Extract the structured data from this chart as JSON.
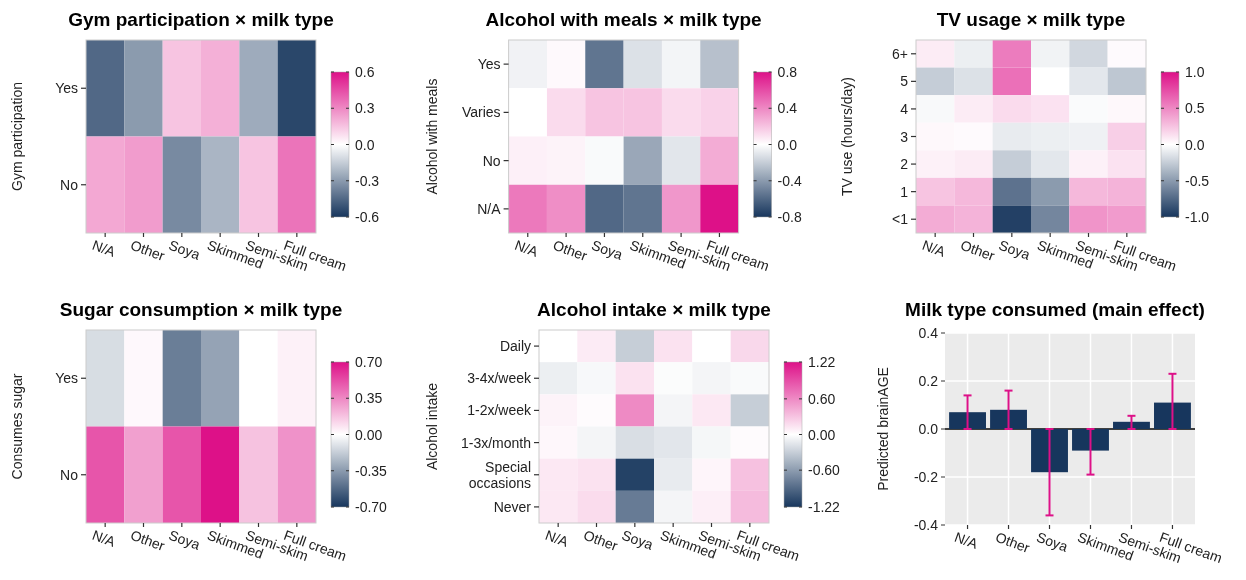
{
  "chart_data": [
    {
      "type": "heatmap",
      "title": "Gym participation × milk type",
      "ylabel": "Gym participation",
      "categories": [
        "N/A",
        "Other",
        "Soya",
        "Skimmed",
        "Semi-skim",
        "Full cream"
      ],
      "y_categories": [
        "Yes",
        "No"
      ],
      "cells": [
        [
          -0.45,
          -0.3,
          0.15,
          0.2,
          -0.25,
          -0.55
        ],
        [
          0.22,
          0.25,
          -0.35,
          -0.22,
          0.15,
          0.35
        ]
      ],
      "clim": [
        -0.6,
        0.6
      ],
      "cticks": [
        -0.6,
        -0.3,
        {
          "value": 0,
          "label": "0.0"
        },
        0.3,
        0.6
      ]
    },
    {
      "type": "heatmap",
      "title": "Alcohol with meals × milk type",
      "ylabel": "Alcohol with meals",
      "categories": [
        "N/A",
        "Other",
        "Soya",
        "Skimmed",
        "Semi-skim",
        "Full cream"
      ],
      "y_categories": [
        "Yes",
        "Varies",
        "No",
        "N/A"
      ],
      "cells": [
        [
          -0.05,
          0.02,
          -0.55,
          -0.12,
          -0.04,
          -0.25
        ],
        [
          0,
          0.12,
          0.2,
          0.2,
          0.12,
          0.15
        ],
        [
          0.05,
          0.04,
          -0.02,
          -0.35,
          -0.1,
          0.28
        ],
        [
          0.45,
          0.38,
          -0.6,
          -0.55,
          0.35,
          0.8
        ]
      ],
      "clim": [
        -0.8,
        0.8
      ],
      "cticks": [
        -0.8,
        -0.4,
        {
          "value": 0,
          "label": "0.0"
        },
        0.4,
        0.8
      ]
    },
    {
      "type": "heatmap",
      "title": "TV usage × milk type",
      "ylabel": "TV use (hours/day)",
      "categories": [
        "N/A",
        "Other",
        "Soya",
        "Skimmed",
        "Semi-skim",
        "Full cream"
      ],
      "y_categories": [
        "6+",
        "5",
        "4",
        "3",
        "2",
        "1",
        "<1"
      ],
      "cells": [
        [
          0.08,
          -0.08,
          0.55,
          -0.06,
          -0.2,
          0.02
        ],
        [
          -0.25,
          -0.15,
          0.6,
          0,
          -0.12,
          -0.28
        ],
        [
          -0.03,
          0.08,
          0.15,
          0.12,
          -0.02,
          0.03
        ],
        [
          0.03,
          0.02,
          -0.1,
          -0.08,
          -0.07,
          0.2
        ],
        [
          0.06,
          0.08,
          -0.25,
          -0.12,
          0.06,
          0.12
        ],
        [
          0.25,
          0.3,
          -0.7,
          -0.5,
          0.3,
          0.32
        ],
        [
          0.35,
          0.32,
          -0.95,
          -0.6,
          0.45,
          0.42
        ]
      ],
      "clim": [
        -1,
        1
      ],
      "cticks": [
        {
          "value": -1,
          "label": "-1.0"
        },
        -0.5,
        {
          "value": 0,
          "label": "0.0"
        },
        0.5,
        {
          "value": 1,
          "label": "1.0"
        }
      ]
    },
    {
      "type": "heatmap",
      "title": "Sugar consumption × milk type",
      "ylabel": "Consumes sugar",
      "categories": [
        "N/A",
        "Other",
        "Soya",
        "Skimmed",
        "Semi-skim",
        "Full cream"
      ],
      "y_categories": [
        "Yes",
        "No"
      ],
      "cells": [
        [
          -0.12,
          0.02,
          -0.45,
          -0.32,
          0,
          0.04
        ],
        [
          0.5,
          0.28,
          0.5,
          0.7,
          0.18,
          0.32
        ]
      ],
      "clim": [
        -0.7,
        0.7
      ],
      "cticks": [
        {
          "value": -0.7,
          "label": "-0.70"
        },
        -0.35,
        {
          "value": 0,
          "label": "0.00"
        },
        0.35,
        {
          "value": 0.7,
          "label": "0.70"
        }
      ]
    },
    {
      "type": "heatmap",
      "title": "Alcohol intake × milk type",
      "ylabel": "Alcohol intake",
      "categories": [
        "N/A",
        "Other",
        "Soya",
        "Skimmed",
        "Semi-skim",
        "Full cream"
      ],
      "y_categories": [
        "Daily",
        "3-4x/week",
        "1-2x/week",
        "1-3x/month",
        "Special occasions",
        "Never"
      ],
      "cells": [
        [
          0,
          0.1,
          -0.3,
          0.15,
          0,
          0.2
        ],
        [
          -0.1,
          -0.04,
          0.15,
          -0.02,
          -0.06,
          -0.03
        ],
        [
          0.06,
          0.02,
          0.6,
          -0.06,
          0.12,
          -0.3
        ],
        [
          0.04,
          -0.06,
          -0.2,
          -0.15,
          -0.05,
          0.02
        ],
        [
          0.12,
          0.15,
          -1.15,
          -0.12,
          0.05,
          0.32
        ],
        [
          0.12,
          0.18,
          -0.8,
          -0.06,
          0.08,
          0.35
        ]
      ],
      "clim": [
        -1.22,
        1.22
      ],
      "cticks": [
        -1.22,
        {
          "value": -0.6,
          "label": "-0.60"
        },
        {
          "value": 0,
          "label": "0.00"
        },
        {
          "value": 0.6,
          "label": "0.60"
        },
        1.22
      ]
    },
    {
      "type": "bar",
      "title": "Milk type consumed (main effect)",
      "ylabel": "Predicted brainAGE",
      "categories": [
        "N/A",
        "Other",
        "Soya",
        "Skimmed",
        "Semi-skim",
        "Full cream"
      ],
      "values": [
        0.07,
        0.08,
        -0.18,
        -0.09,
        0.03,
        0.11
      ],
      "color": "#17365d",
      "errors": [
        [
          0,
          0.14
        ],
        [
          0,
          0.16
        ],
        [
          -0.36,
          0
        ],
        [
          -0.19,
          0
        ],
        [
          0,
          0.055
        ],
        [
          0,
          0.23
        ]
      ],
      "ylim": [
        -0.4,
        0.4
      ],
      "yticks": [
        -0.4,
        -0.2,
        {
          "value": 0,
          "label": "0.0"
        },
        0.2,
        0.4
      ],
      "grid": true,
      "ref_lines": [
        {
          "axis": "y",
          "value": 0,
          "color": "#000000"
        }
      ]
    }
  ]
}
